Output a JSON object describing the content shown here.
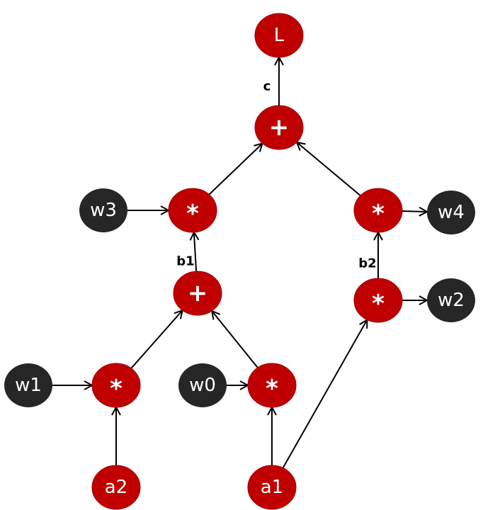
{
  "colors": {
    "operation_node": "#c00000",
    "operation_node_border": "#a00000",
    "leaf_node": "#262626",
    "text": "#ffffff",
    "edge": "#000000"
  },
  "nodes": {
    "L": {
      "label": "L",
      "kind": "output"
    },
    "plus_top": {
      "label": "+",
      "kind": "operation"
    },
    "mul_left": {
      "label": "*",
      "kind": "operation"
    },
    "mul_right_top": {
      "label": "*",
      "kind": "operation"
    },
    "plus_mid": {
      "label": "+",
      "kind": "operation"
    },
    "mul_right_mid": {
      "label": "*",
      "kind": "operation"
    },
    "mul_bottom_left": {
      "label": "*",
      "kind": "operation"
    },
    "mul_bottom_mid": {
      "label": "*",
      "kind": "operation"
    },
    "w3": {
      "label": "w3",
      "kind": "weight"
    },
    "w4": {
      "label": "w4",
      "kind": "weight"
    },
    "w2": {
      "label": "w2",
      "kind": "weight"
    },
    "w1": {
      "label": "w1",
      "kind": "weight"
    },
    "w0": {
      "label": "w0",
      "kind": "weight"
    },
    "a2": {
      "label": "a2",
      "kind": "input"
    },
    "a1": {
      "label": "a1",
      "kind": "input"
    }
  },
  "edge_labels": {
    "c": "c",
    "b1": "b1",
    "b2": "b2"
  },
  "edges": [
    {
      "from": "plus_top",
      "to": "L"
    },
    {
      "from": "mul_left",
      "to": "plus_top"
    },
    {
      "from": "mul_right_top",
      "to": "plus_top"
    },
    {
      "from": "w3",
      "to": "mul_left"
    },
    {
      "from": "mul_right_top",
      "to": "w4"
    },
    {
      "from": "plus_mid",
      "to": "mul_left"
    },
    {
      "from": "mul_right_mid",
      "to": "mul_right_top"
    },
    {
      "from": "mul_right_mid",
      "to": "w2"
    },
    {
      "from": "mul_bottom_left",
      "to": "plus_mid"
    },
    {
      "from": "mul_bottom_mid",
      "to": "plus_mid"
    },
    {
      "from": "w1",
      "to": "mul_bottom_left"
    },
    {
      "from": "w0",
      "to": "mul_bottom_mid"
    },
    {
      "from": "a2",
      "to": "mul_bottom_left"
    },
    {
      "from": "a1",
      "to": "mul_bottom_mid"
    },
    {
      "from": "a1",
      "to": "mul_right_mid"
    }
  ]
}
